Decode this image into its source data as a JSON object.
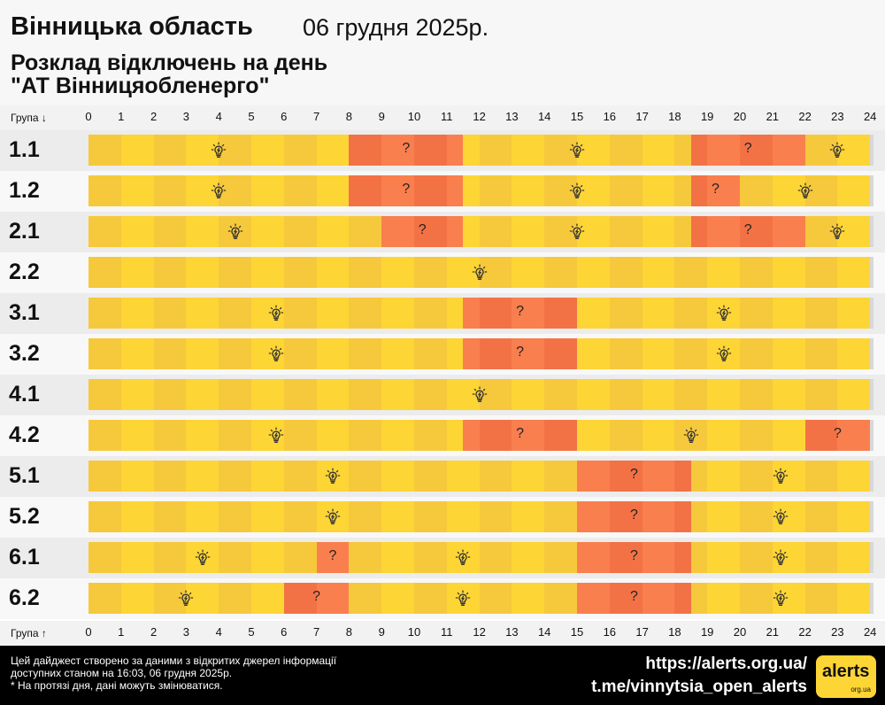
{
  "header": {
    "region": "Вінницька область",
    "date": "06 грудня 2025р.",
    "subtitle_line1": "Розклад відключень на день",
    "subtitle_line2": "\"АТ Вінницяобленерго\""
  },
  "axis": {
    "top_label": "Група ↓",
    "bottom_label": "Група ↑",
    "hours": [
      "0",
      "1",
      "2",
      "3",
      "4",
      "5",
      "6",
      "7",
      "8",
      "9",
      "10",
      "11",
      "12",
      "13",
      "14",
      "15",
      "16",
      "17",
      "18",
      "19",
      "20",
      "21",
      "22",
      "23",
      "24"
    ]
  },
  "legend_symbols": {
    "power_on_icon": "lightbulb-icon",
    "power_off_mark": "?"
  },
  "colors": {
    "power_on": "#fdd535",
    "possible_outage": "#fa7f4e",
    "footer_bg": "#000000"
  },
  "groups": [
    {
      "name": "1.1",
      "outages": [
        [
          8,
          11.5
        ],
        [
          18.5,
          22
        ]
      ]
    },
    {
      "name": "1.2",
      "outages": [
        [
          8,
          11.5
        ],
        [
          18.5,
          20
        ]
      ]
    },
    {
      "name": "2.1",
      "outages": [
        [
          9,
          11.5
        ],
        [
          18.5,
          22
        ]
      ]
    },
    {
      "name": "2.2",
      "outages": []
    },
    {
      "name": "3.1",
      "outages": [
        [
          11.5,
          15
        ]
      ]
    },
    {
      "name": "3.2",
      "outages": [
        [
          11.5,
          15
        ]
      ]
    },
    {
      "name": "4.1",
      "outages": []
    },
    {
      "name": "4.2",
      "outages": [
        [
          11.5,
          15
        ],
        [
          22,
          24
        ]
      ]
    },
    {
      "name": "5.1",
      "outages": [
        [
          15,
          18.5
        ]
      ]
    },
    {
      "name": "5.2",
      "outages": [
        [
          15,
          18.5
        ]
      ]
    },
    {
      "name": "6.1",
      "outages": [
        [
          7,
          8
        ],
        [
          15,
          18.5
        ]
      ]
    },
    {
      "name": "6.2",
      "outages": [
        [
          6,
          8
        ],
        [
          15,
          18.5
        ]
      ]
    }
  ],
  "footer": {
    "note_line1": "Цей дайджест створено за даними з відкритих джерел інформації",
    "note_line2": "доступних станом на 16:03, 06 грудня 2025р.",
    "note_line3": "* На протязі дня, дані можуть змінюватися.",
    "link_site": "https://alerts.org.ua/",
    "link_telegram": "t.me/vinnytsia_open_alerts",
    "logo_text": "alerts",
    "logo_sub": "org.ua"
  }
}
